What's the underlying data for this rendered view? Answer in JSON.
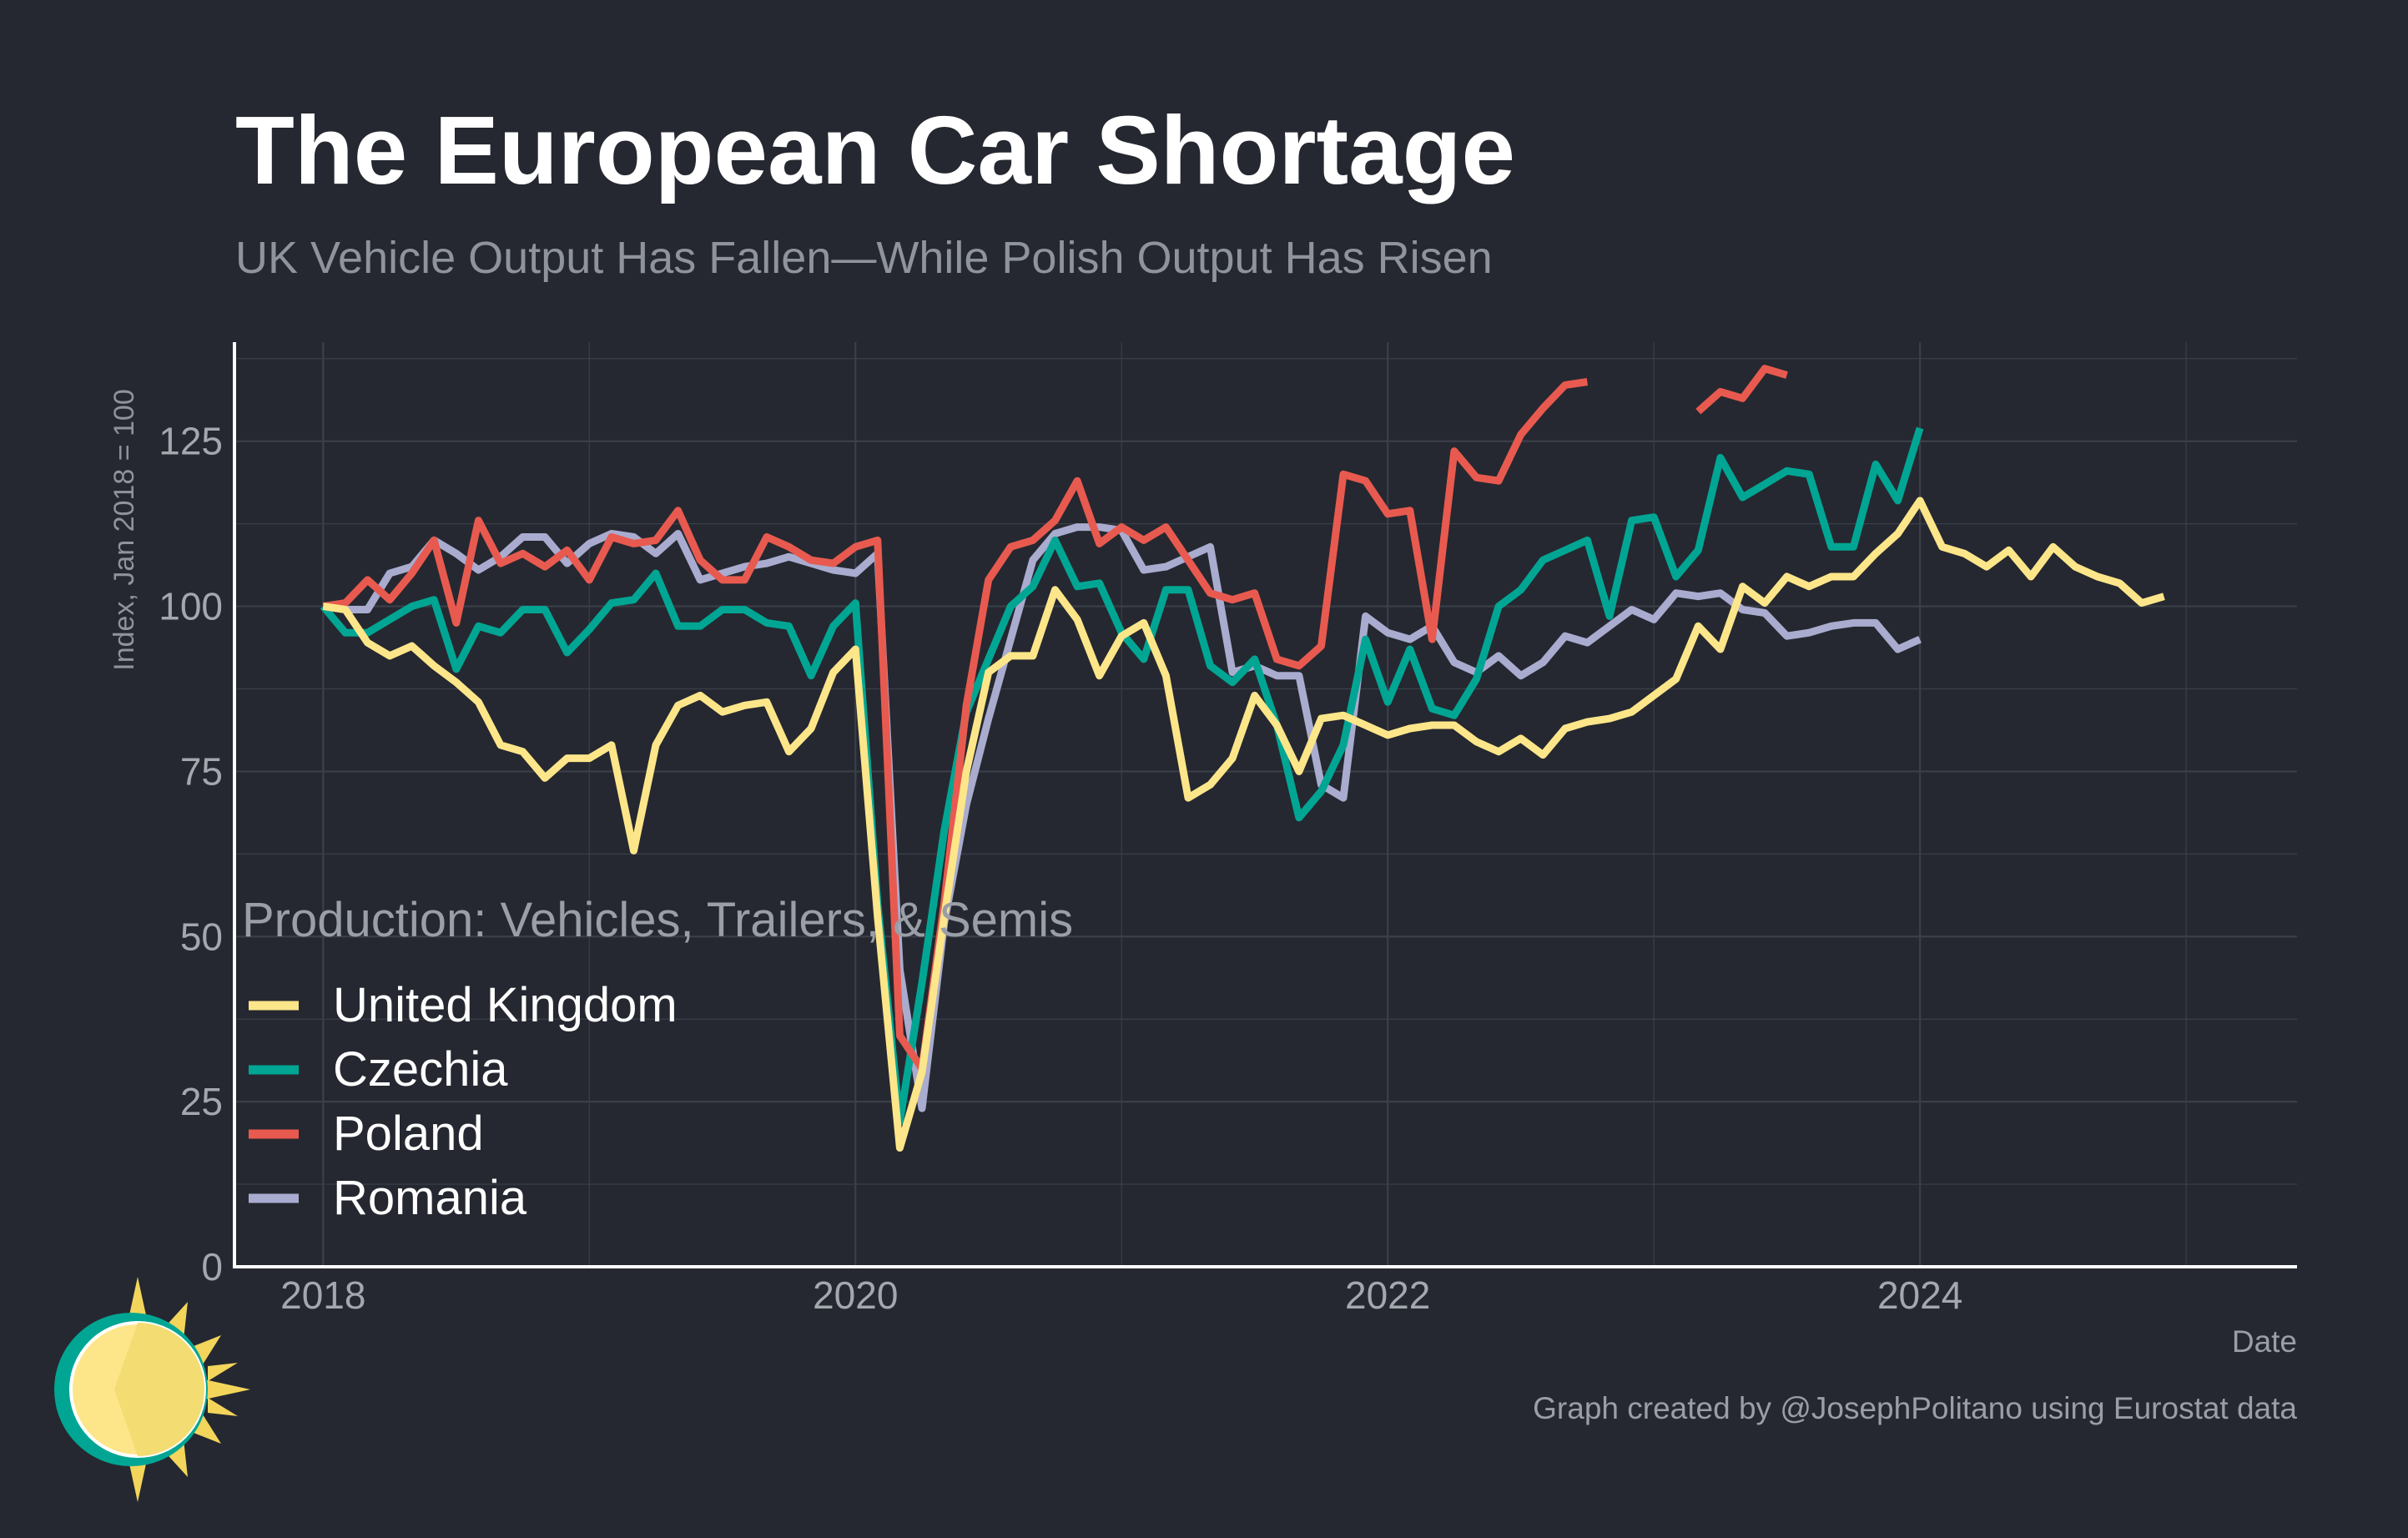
{
  "header": {
    "title": "The European Car Shortage",
    "subtitle": "UK Vehicle Output Has Fallen—While Polish Output Has Risen"
  },
  "footer": {
    "credit": "Graph created by @JosephPolitano using Eurostat data"
  },
  "logo": {
    "icon": "sun-logo-icon"
  },
  "colors": {
    "background": "#252830",
    "grid": "#3b3f47",
    "axis": "#ffffff",
    "united_kingdom": "#fde68a",
    "czechia": "#00a693",
    "poland": "#e85a4f",
    "romania": "#a9accf"
  },
  "chart_data": {
    "type": "line",
    "title": "The European Car Shortage",
    "subtitle": "UK Vehicle Output Has Fallen—While Polish Output Has Risen",
    "xlabel": "Date",
    "ylabel": "Index, Jan 2018 = 100",
    "x_ticks": [
      "2018",
      "2020",
      "2022",
      "2024"
    ],
    "y_ticks": [
      0,
      25,
      50,
      75,
      100,
      125
    ],
    "ylim": [
      0,
      140
    ],
    "xlim": [
      "2017-09",
      "2025-06"
    ],
    "grid": true,
    "legend": {
      "title": "Production: Vehicles, Trailers, & Semis",
      "position": "bottom-left"
    },
    "series": [
      {
        "name": "United Kingdom",
        "color": "#fde68a",
        "start": "2018-01",
        "values": [
          100,
          99.5,
          94.5,
          92.5,
          94,
          91,
          88.5,
          85.5,
          79,
          78,
          74,
          77,
          77,
          79,
          63,
          79,
          85,
          86.5,
          84,
          85,
          85.5,
          78,
          81.5,
          90,
          93.5,
          53,
          18,
          29.5,
          53,
          75,
          90,
          92.5,
          92.5,
          102.5,
          98,
          89.5,
          95.5,
          97.5,
          89.5,
          71,
          73,
          77,
          86.5,
          82,
          75,
          83,
          83.5,
          82,
          80.5,
          81.5,
          82,
          82,
          79.5,
          78,
          80,
          77.5,
          81.5,
          82.5,
          83,
          84,
          86.5,
          89,
          97,
          93.5,
          103,
          100.5,
          104.5,
          103,
          104.5,
          104.5,
          108,
          111,
          116,
          109,
          108,
          106,
          108.5,
          104.5,
          109,
          106,
          104.5,
          103.5,
          100.5,
          101.5
        ]
      },
      {
        "name": "Czechia",
        "color": "#00a693",
        "start": "2018-01",
        "values": [
          100,
          96,
          96,
          98,
          100,
          101,
          90.5,
          97,
          96,
          99.5,
          99.5,
          93,
          96.5,
          100.5,
          101,
          105,
          97,
          97,
          99.5,
          99.5,
          97.5,
          97,
          89.5,
          97,
          100.5,
          55,
          22,
          43,
          66,
          84,
          92,
          100,
          103,
          110,
          103,
          103.5,
          96,
          92,
          102.5,
          102.5,
          91,
          88.5,
          92,
          82,
          68,
          72,
          79,
          95,
          85.5,
          93.5,
          84.5,
          83.5,
          89,
          100,
          102.5,
          107,
          108.5,
          110,
          98.5,
          113,
          113.5,
          104.5,
          108.5,
          122.5,
          116.5,
          118.5,
          120.5,
          120,
          109,
          109,
          121.5,
          116,
          127
        ]
      },
      {
        "name": "Poland",
        "color": "#e85a4f",
        "start": "2018-01",
        "values": [
          100,
          100.5,
          104,
          101,
          105,
          110,
          97.5,
          113,
          106.5,
          108,
          106,
          108.5,
          104,
          110.5,
          109.5,
          110,
          114.5,
          107,
          104,
          104,
          110.5,
          109,
          107,
          106.5,
          109,
          110,
          35,
          30,
          55,
          85,
          104,
          109,
          110,
          113,
          119,
          109.5,
          112,
          110,
          112,
          107,
          102,
          101,
          102,
          92,
          91,
          94,
          120,
          119,
          114,
          114.5,
          95,
          123.5,
          119.5,
          119,
          126,
          130,
          133.5,
          134,
          null,
          null,
          null,
          null,
          129.5,
          132.5,
          131.5,
          136,
          135
        ]
      },
      {
        "name": "Romania",
        "color": "#a9accf",
        "start": "2018-01",
        "values": [
          100,
          99.5,
          99.5,
          105,
          106,
          110,
          108,
          105.5,
          107.5,
          110.5,
          110.5,
          106.5,
          109.5,
          111,
          110.5,
          108,
          111,
          104,
          105,
          106,
          106.5,
          107.5,
          106.5,
          105.5,
          105,
          108,
          45,
          24,
          52,
          70,
          83,
          95,
          107,
          111,
          112,
          112,
          111.5,
          105.5,
          106,
          107.5,
          109,
          90,
          91,
          89.5,
          89.5,
          73,
          71,
          98.5,
          96,
          95,
          97,
          91.5,
          90,
          92.5,
          89.5,
          91.5,
          95.5,
          94.5,
          97,
          99.5,
          98,
          102,
          101.5,
          102,
          99.5,
          99,
          95.5,
          96,
          97,
          97.5,
          97.5,
          93.5,
          95
        ]
      }
    ]
  }
}
